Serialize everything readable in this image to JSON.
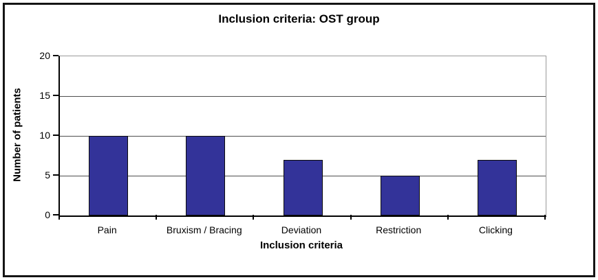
{
  "chart_data": {
    "type": "bar",
    "title": "Inclusion criteria: OST group",
    "categories": [
      "Pain",
      "Bruxism / Bracing",
      "Deviation",
      "Restriction",
      "Clicking"
    ],
    "values": [
      10,
      10,
      7,
      5,
      7
    ],
    "xlabel": "Inclusion criteria",
    "ylabel": "Number of patients",
    "ylim": [
      0,
      20
    ],
    "yticks": [
      0,
      5,
      10,
      15,
      20
    ],
    "grid": true,
    "legend": false,
    "bar_color": "#333399",
    "bar_border_color": "#0a0a0a",
    "axis_color": "#000000",
    "gridline_color": "#4d4d4d",
    "plot_border_color": "#999999",
    "background_color": "#ffffff"
  }
}
